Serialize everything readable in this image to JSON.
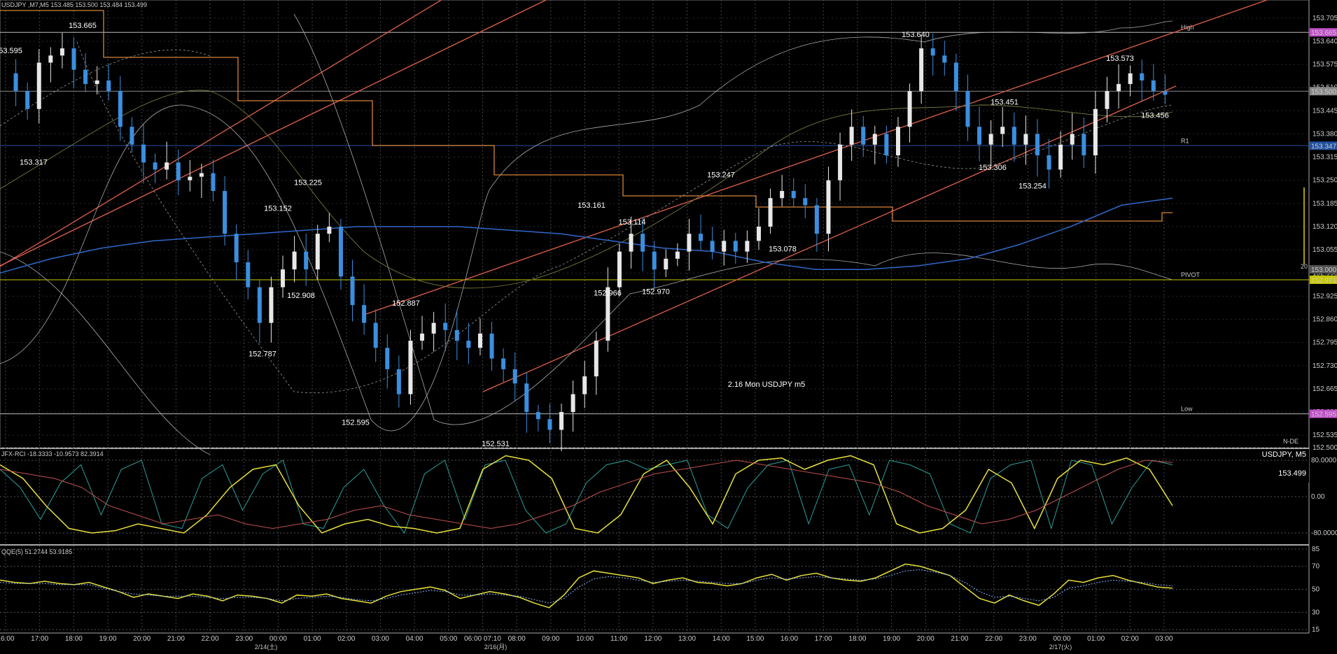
{
  "header": {
    "main": "USDJPY ,M7,M5  153.485 153.500 153.484 153.499",
    "rci": "JFX-RCI -18.3333 -10.9573 82.3914",
    "qqe": "QQE(5) 51.2744 53.9185"
  },
  "watermark": "2.16 Mon USDJPY m5",
  "symbol_box": {
    "name": "USDJPY, M5",
    "price": "153.499"
  },
  "levels": {
    "high": "High",
    "r1": "R1",
    "pivot": "PIVOT",
    "low": "Low",
    "side_val": "20",
    "nde": "N-DE"
  },
  "colors": {
    "up": "#e8e8e8",
    "down": "#3a8fe0",
    "ma_blue": "#3068c8",
    "channel": "#e0604a",
    "step": "#d8843a",
    "rci_fast": "#2aa198",
    "rci_slow": "#e6e03a",
    "rci_long": "#c05050",
    "qqe_main": "#e6e03a",
    "qqe_sig": "#8ab4f8",
    "pivot": "#c8c800",
    "marker": "#c050c8"
  },
  "chart_data": [
    {
      "type": "line",
      "title": "USDJPY ,M7,M5",
      "panel": "price",
      "ylim": [
        152.5,
        153.74
      ],
      "y_ticks": [
        "153.705",
        "153.640",
        "153.575",
        "153.510",
        "153.445",
        "153.380",
        "153.315",
        "153.250",
        "153.185",
        "153.120",
        "153.055",
        "152.990",
        "152.925",
        "152.860",
        "152.795",
        "152.730",
        "152.665",
        "152.600",
        "152.535",
        "152.500"
      ],
      "x_ticks": [
        "16:00",
        "17:00",
        "18:00",
        "19:00",
        "20:00",
        "21:00",
        "22:00",
        "23:00",
        "00:00",
        "01:00",
        "02:00",
        "03:00",
        "04:00",
        "05:00",
        "06:00 07:10",
        "08:00",
        "09:00",
        "10:00",
        "11:00",
        "12:00",
        "13:00",
        "14:00",
        "15:00",
        "16:00",
        "17:00",
        "18:00",
        "19:00",
        "20:00",
        "21:00",
        "22:00",
        "23:00",
        "00:00",
        "01:00",
        "02:00",
        "03:00"
      ],
      "date_labels": [
        "2/14(土)",
        "2/16(月)",
        "2/17(火)"
      ],
      "markers": [
        {
          "label": "High",
          "value": 153.665,
          "text": "153.665"
        },
        {
          "label": "Bid",
          "value": 153.5,
          "text": "153.500"
        },
        {
          "label": "R1",
          "value": 153.347,
          "text": "153.347"
        },
        {
          "label": "Round",
          "value": 153.0,
          "text": "153.000"
        },
        {
          "label": "PIVOT",
          "value": 152.971,
          "text": "152.971"
        },
        {
          "label": "Low",
          "value": 152.595,
          "text": "152.595"
        }
      ],
      "annotations": [
        {
          "text": "153.665",
          "value": 153.665
        },
        {
          "text": "153.595",
          "value": 153.595
        },
        {
          "text": "153.317",
          "value": 153.317
        },
        {
          "text": "153.225",
          "value": 153.225
        },
        {
          "text": "153.152",
          "value": 153.152
        },
        {
          "text": "152.908",
          "value": 152.908
        },
        {
          "text": "152.787",
          "value": 152.787
        },
        {
          "text": "152.887",
          "value": 152.887
        },
        {
          "text": "152.595",
          "value": 152.595
        },
        {
          "text": "152.531",
          "value": 152.531
        },
        {
          "text": "153.161",
          "value": 153.161
        },
        {
          "text": "152.966",
          "value": 152.966
        },
        {
          "text": "153.114",
          "value": 153.114
        },
        {
          "text": "152.970",
          "value": 152.97
        },
        {
          "text": "153.247",
          "value": 153.247
        },
        {
          "text": "153.078",
          "value": 153.078
        },
        {
          "text": "153.640",
          "value": 153.64
        },
        {
          "text": "153.451",
          "value": 153.451
        },
        {
          "text": "153.306",
          "value": 153.306
        },
        {
          "text": "153.254",
          "value": 153.254
        },
        {
          "text": "153.573",
          "value": 153.573
        },
        {
          "text": "153.456",
          "value": 153.456
        }
      ],
      "series": [
        {
          "name": "USDJPY",
          "values": [
            153.55,
            153.5,
            153.45,
            153.58,
            153.6,
            153.62,
            153.56,
            153.52,
            153.53,
            153.5,
            153.4,
            153.35,
            153.3,
            153.28,
            153.3,
            153.25,
            153.26,
            153.27,
            153.22,
            153.1,
            153.02,
            152.95,
            152.85,
            152.95,
            153.0,
            153.05,
            153.0,
            153.1,
            153.12,
            152.98,
            152.9,
            152.85,
            152.78,
            152.72,
            152.65,
            152.8,
            152.82,
            152.85,
            152.83,
            152.8,
            152.78,
            152.82,
            152.75,
            152.72,
            152.68,
            152.6,
            152.58,
            152.55,
            152.6,
            152.65,
            152.7,
            152.8,
            152.95,
            153.05,
            153.1,
            153.05,
            153.0,
            153.03,
            153.05,
            153.1,
            153.08,
            153.05,
            153.08,
            153.05,
            153.08,
            153.12,
            153.2,
            153.22,
            153.2,
            153.18,
            153.1,
            153.25,
            153.35,
            153.4,
            153.35,
            153.38,
            153.32,
            153.4,
            153.5,
            153.62,
            153.6,
            153.58,
            153.5,
            153.4,
            153.35,
            153.38,
            153.4,
            153.35,
            153.38,
            153.32,
            153.28,
            153.35,
            153.38,
            153.32,
            153.45,
            153.5,
            153.52,
            153.55,
            153.53,
            153.5,
            153.49
          ]
        },
        {
          "name": "MA",
          "values": [
            152.99,
            153.03,
            153.06,
            153.08,
            153.09,
            153.1,
            153.11,
            153.12,
            153.12,
            153.12,
            153.11,
            153.1,
            153.08,
            153.06,
            153.05,
            153.02,
            153.0,
            153.0,
            153.01,
            153.03,
            153.07,
            153.12,
            153.18,
            153.2
          ]
        }
      ]
    },
    {
      "type": "line",
      "title": "JFX-RCI",
      "panel": "rci",
      "ylim": [
        -100,
        100
      ],
      "y_ticks": [
        "80.0000",
        "0.00",
        "-80.0000"
      ],
      "series": [
        {
          "name": "fast",
          "values": [
            60,
            20,
            -50,
            30,
            70,
            -40,
            60,
            80,
            -60,
            -70,
            40,
            70,
            -30,
            50,
            80,
            -60,
            -70,
            20,
            60,
            -20,
            -80,
            50,
            80,
            -50,
            70,
            80,
            -30,
            -80,
            -60,
            30,
            70,
            80,
            60,
            70,
            80,
            -40,
            -70,
            20,
            70,
            80,
            -60,
            60,
            70,
            -40,
            80,
            70,
            50,
            -60,
            -80,
            40,
            70,
            80,
            -70,
            80,
            70,
            -60,
            20,
            80,
            70
          ]
        },
        {
          "name": "slow",
          "values": [
            70,
            40,
            -20,
            -70,
            -80,
            -75,
            -60,
            -70,
            -80,
            -40,
            20,
            60,
            70,
            -20,
            -80,
            -60,
            -50,
            -65,
            -70,
            -80,
            -70,
            60,
            90,
            80,
            40,
            -70,
            -80,
            -40,
            50,
            80,
            20,
            -60,
            50,
            80,
            85,
            60,
            80,
            90,
            70,
            -60,
            -80,
            -70,
            -30,
            60,
            30,
            -70,
            40,
            80,
            70,
            85,
            60,
            -20
          ]
        },
        {
          "name": "long",
          "values": [
            60,
            50,
            40,
            20,
            -20,
            -40,
            -60,
            -50,
            -40,
            -60,
            -70,
            -60,
            -50,
            -30,
            -20,
            -40,
            -50,
            -60,
            -70,
            -60,
            -40,
            -20,
            10,
            30,
            50,
            60,
            70,
            80,
            70,
            60,
            50,
            40,
            30,
            10,
            -20,
            -40,
            -60,
            -50,
            -30,
            0,
            30,
            60,
            80,
            75
          ]
        }
      ]
    },
    {
      "type": "line",
      "title": "QQE(5)",
      "panel": "qqe",
      "ylim": [
        15,
        85
      ],
      "y_ticks": [
        "85",
        "70",
        "50",
        "30",
        "15"
      ],
      "series": [
        {
          "name": "QQE",
          "values": [
            58,
            56,
            55,
            57,
            55,
            54,
            56,
            52,
            48,
            43,
            46,
            44,
            42,
            46,
            44,
            40,
            45,
            44,
            42,
            38,
            45,
            44,
            46,
            42,
            40,
            38,
            44,
            48,
            50,
            52,
            49,
            42,
            45,
            48,
            46,
            43,
            38,
            34,
            45,
            60,
            66,
            64,
            62,
            60,
            55,
            58,
            60,
            56,
            55,
            53,
            55,
            60,
            63,
            58,
            62,
            64,
            60,
            58,
            57,
            60,
            66,
            72,
            70,
            66,
            62,
            52,
            42,
            38,
            45,
            40,
            36,
            46,
            58,
            56,
            60,
            62,
            58,
            55,
            52,
            51
          ]
        },
        {
          "name": "Signal",
          "values": [
            56,
            55,
            55,
            55,
            54,
            54,
            54,
            51,
            48,
            46,
            45,
            44,
            44,
            44,
            43,
            42,
            43,
            43,
            42,
            40,
            42,
            43,
            44,
            43,
            41,
            40,
            42,
            45,
            47,
            49,
            48,
            45,
            45,
            46,
            45,
            44,
            41,
            38,
            42,
            52,
            59,
            61,
            60,
            58,
            56,
            57,
            58,
            57,
            56,
            55,
            55,
            58,
            60,
            59,
            60,
            61,
            60,
            59,
            58,
            59,
            62,
            66,
            67,
            65,
            62,
            56,
            48,
            43,
            44,
            42,
            40,
            43,
            51,
            53,
            56,
            58,
            57,
            56,
            54,
            53
          ]
        }
      ]
    }
  ]
}
